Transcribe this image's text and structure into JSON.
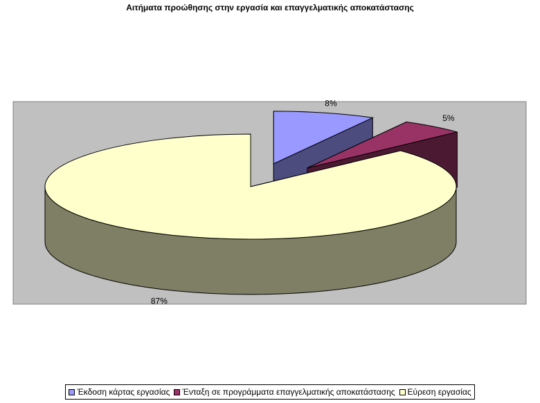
{
  "chart_data": {
    "type": "pie",
    "title": "Αιτήματα προώθησης στην εργασία και επαγγελματικής αποκατάστασης",
    "categories": [
      "Έκδοση κάρτας εργασίας",
      "Ένταξη σε προγράμματα επαγγελματικής αποκατάστασης",
      "Εύρεση εργασίας"
    ],
    "values": [
      8,
      5,
      87
    ],
    "value_labels": [
      "8%",
      "5%",
      "87%"
    ],
    "colors": [
      "#9999ff",
      "#993366",
      "#ffffcc"
    ],
    "legend": "bottom"
  }
}
